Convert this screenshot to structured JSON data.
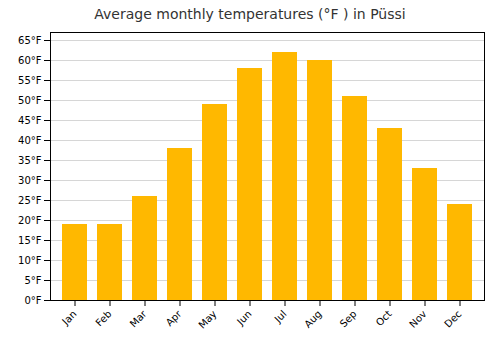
{
  "chart_data": {
    "type": "bar",
    "title": "Average monthly temperatures (°F ) in Püssi",
    "categories": [
      "Jan",
      "Feb",
      "Mar",
      "Apr",
      "May",
      "Jun",
      "Jul",
      "Aug",
      "Sep",
      "Oct",
      "Nov",
      "Dec"
    ],
    "values": [
      19,
      19,
      26,
      38,
      49,
      58,
      62,
      60,
      51,
      43,
      33,
      24
    ],
    "color": "#FFB800",
    "ylim": [
      0,
      67
    ],
    "yticks": [
      {
        "value": 0,
        "label": "0°F"
      },
      {
        "value": 5,
        "label": "5°F"
      },
      {
        "value": 10,
        "label": "10°F"
      },
      {
        "value": 15,
        "label": "15°F"
      },
      {
        "value": 20,
        "label": "20°F"
      },
      {
        "value": 25,
        "label": "25°F"
      },
      {
        "value": 30,
        "label": "30°F"
      },
      {
        "value": 35,
        "label": "35°F"
      },
      {
        "value": 40,
        "label": "40°F"
      },
      {
        "value": 45,
        "label": "45°F"
      },
      {
        "value": 50,
        "label": "50°F"
      },
      {
        "value": 55,
        "label": "55°F"
      },
      {
        "value": 60,
        "label": "60°F"
      },
      {
        "value": 65,
        "label": "65°F"
      }
    ],
    "grid": true
  }
}
